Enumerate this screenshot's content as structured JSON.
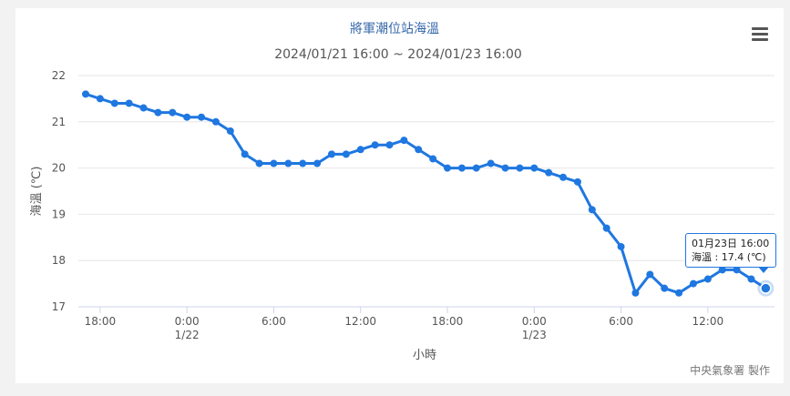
{
  "chart_data": {
    "type": "line",
    "title": "將軍潮位站海溫",
    "subtitle": "2024/01/21 16:00 ~ 2024/01/23 16:00",
    "xlabel": "小時",
    "ylabel": "海溫 (℃)",
    "ylim": [
      17,
      22
    ],
    "yticks": [
      17,
      18,
      19,
      20,
      21,
      22
    ],
    "grid": "horizontal",
    "x_start_hour": 17,
    "x_tick_labels": [
      {
        "hour": 18,
        "line1": "18:00",
        "line2": ""
      },
      {
        "hour": 24,
        "line1": "0:00",
        "line2": "1/22"
      },
      {
        "hour": 30,
        "line1": "6:00",
        "line2": ""
      },
      {
        "hour": 36,
        "line1": "12:00",
        "line2": ""
      },
      {
        "hour": 42,
        "line1": "18:00",
        "line2": ""
      },
      {
        "hour": 48,
        "line1": "0:00",
        "line2": "1/23"
      },
      {
        "hour": 54,
        "line1": "6:00",
        "line2": ""
      },
      {
        "hour": 60,
        "line1": "12:00",
        "line2": ""
      }
    ],
    "series": [
      {
        "color": "#1f77e0",
        "values": [
          21.6,
          21.5,
          21.4,
          21.4,
          21.3,
          21.2,
          21.2,
          21.1,
          21.1,
          21.0,
          20.8,
          20.3,
          20.1,
          20.1,
          20.1,
          20.1,
          20.1,
          20.3,
          20.3,
          20.4,
          20.5,
          20.5,
          20.6,
          20.4,
          20.2,
          20.0,
          20.0,
          20.0,
          20.1,
          20.0,
          20.0,
          20.0,
          19.9,
          19.8,
          19.7,
          19.1,
          18.7,
          18.3,
          17.3,
          17.7,
          17.4,
          17.3,
          17.5,
          17.6,
          17.8,
          17.8,
          17.6,
          17.4
        ]
      }
    ],
    "highlight_index": 47
  },
  "tooltip": {
    "line1": "01月23日 16:00",
    "line2": "海溫 : 17.4 (℃)"
  },
  "credit": "中央氣象署 製作",
  "menu_icon": "hamburger-menu-icon"
}
